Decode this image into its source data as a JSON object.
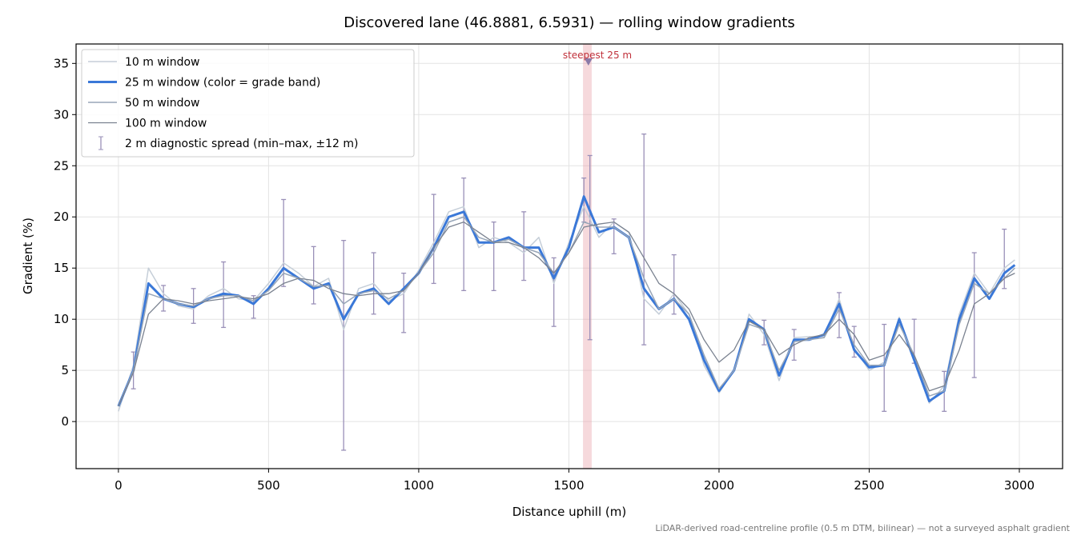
{
  "chart_data": {
    "type": "line",
    "title": "Discovered lane (46.8881, 6.5931) — rolling window gradients",
    "xlabel": "Distance uphill (m)",
    "ylabel": "Gradient (%)",
    "footnote": "LiDAR-derived road-centreline profile (0.5 m DTM, bilinear) — not a surveyed asphalt gradient",
    "xlim": [
      -141,
      3144
    ],
    "ylim": [
      -4.6,
      36.9
    ],
    "xticks": [
      0,
      500,
      1000,
      1500,
      2000,
      2500,
      3000
    ],
    "yticks": [
      0,
      5,
      10,
      15,
      20,
      25,
      30,
      35
    ],
    "grid": true,
    "legend": "upper left",
    "x": [
      0,
      50,
      100,
      150,
      200,
      250,
      300,
      350,
      400,
      450,
      500,
      550,
      600,
      650,
      700,
      750,
      800,
      850,
      900,
      950,
      1000,
      1050,
      1100,
      1150,
      1200,
      1250,
      1300,
      1350,
      1400,
      1450,
      1500,
      1550,
      1600,
      1650,
      1700,
      1750,
      1800,
      1850,
      1900,
      1950,
      2000,
      2050,
      2100,
      2150,
      2200,
      2250,
      2300,
      2350,
      2400,
      2450,
      2500,
      2550,
      2600,
      2650,
      2700,
      2750,
      2800,
      2850,
      2900,
      2950,
      2985
    ],
    "series": [
      {
        "name": "10 m window",
        "color": "#c5ced8",
        "width": 1.5,
        "values": [
          1,
          5.5,
          15,
          12.5,
          11.3,
          11,
          12.3,
          13,
          12,
          11.8,
          13.5,
          15.5,
          14.5,
          13.2,
          14,
          9,
          13,
          13.5,
          11.8,
          12.5,
          14.8,
          17.5,
          20.5,
          21,
          17,
          18,
          17.5,
          16.5,
          18,
          13.5,
          17.5,
          21,
          18,
          19.5,
          18.5,
          12,
          10.5,
          12.5,
          10.5,
          5.5,
          2.8,
          5,
          10.5,
          8.5,
          4,
          8.2,
          8.3,
          8.3,
          12,
          7.2,
          5,
          5.8,
          10.2,
          6,
          1.8,
          3.5,
          10.5,
          14.5,
          12.5,
          15,
          15.8
        ]
      },
      {
        "name": "25 m window (color = grade band)",
        "color": "#3a78d8",
        "width": 3,
        "values": [
          1.5,
          5,
          13.5,
          12,
          11.5,
          11.2,
          12,
          12.5,
          12.3,
          11.5,
          13,
          15,
          14,
          13,
          13.5,
          10,
          12.5,
          13,
          11.5,
          13,
          14.5,
          17,
          20,
          20.5,
          17.5,
          17.5,
          18,
          17,
          17,
          14,
          17,
          22,
          18.5,
          19,
          18,
          13,
          11,
          12,
          10,
          6,
          3,
          5,
          10,
          9,
          4.5,
          8,
          8,
          8.5,
          11.5,
          7,
          5.3,
          5.5,
          10,
          6,
          2,
          3,
          10,
          14,
          12,
          14.5,
          15.3
        ]
      },
      {
        "name": "50 m window",
        "color": "#98a6b8",
        "width": 1.5,
        "values": [
          1.5,
          5,
          12.5,
          12,
          11.5,
          11.3,
          12,
          12.3,
          12.3,
          11.8,
          12.8,
          14.5,
          14,
          13.2,
          13.3,
          11.5,
          12.5,
          12.8,
          12,
          12.8,
          14.5,
          16.5,
          19.5,
          20,
          18,
          17.5,
          17.8,
          17,
          16.5,
          14.5,
          16.5,
          19.5,
          19,
          19,
          18,
          14,
          11,
          12,
          10.5,
          6.5,
          3.2,
          5,
          9.5,
          9,
          5,
          7.8,
          8,
          8.2,
          11,
          7.5,
          5.5,
          5.5,
          9.5,
          6.5,
          2.5,
          3,
          9.5,
          13.5,
          12.5,
          14,
          15
        ]
      },
      {
        "name": "100 m window",
        "color": "#7a8290",
        "width": 1.3,
        "values": [
          1.5,
          4.8,
          10.5,
          12,
          11.8,
          11.5,
          11.8,
          12,
          12.2,
          12,
          12.5,
          13.5,
          14,
          13.8,
          13,
          12.5,
          12.3,
          12.5,
          12.5,
          12.8,
          14.5,
          17,
          19,
          19.5,
          18.5,
          17.5,
          17.5,
          17,
          16,
          14.5,
          16.5,
          19,
          19.3,
          19.5,
          18.5,
          16,
          13.5,
          12.5,
          11,
          8,
          5.8,
          7,
          9.8,
          9,
          6.5,
          7.5,
          8.2,
          8.5,
          10,
          8.5,
          6,
          6.5,
          8.5,
          6.5,
          3,
          3.5,
          7,
          11.5,
          12.5,
          14,
          14.5
        ]
      }
    ],
    "spread": {
      "name": "2 m diagnostic spread (min–max, ±12 m)",
      "color": "#9a90b8",
      "x": [
        50,
        150,
        250,
        350,
        450,
        550,
        650,
        750,
        850,
        950,
        1050,
        1150,
        1250,
        1350,
        1450,
        1550,
        1570,
        1650,
        1750,
        1850,
        2150,
        2250,
        2400,
        2450,
        2550,
        2650,
        2750,
        2850,
        2950
      ],
      "min": [
        3.2,
        10.8,
        9.6,
        9.2,
        10.1,
        13.2,
        11.5,
        -2.8,
        10.5,
        8.7,
        13.5,
        12.8,
        12.8,
        13.8,
        9.3,
        19.5,
        8,
        16.4,
        7.5,
        10.5,
        7.5,
        6,
        8.2,
        6.3,
        1,
        5.7,
        1,
        4.3,
        13
      ],
      "max": [
        6.8,
        13.3,
        13,
        15.6,
        12.3,
        21.7,
        17.1,
        17.7,
        16.5,
        14.5,
        22.2,
        23.8,
        19.5,
        20.5,
        16,
        23.8,
        26,
        19.8,
        28.1,
        16.3,
        9.9,
        9,
        12.6,
        9.3,
        9.5,
        10,
        4.9,
        16.5,
        18.8
      ]
    },
    "highlight": {
      "x": [
        1547,
        1576
      ],
      "label": "steepest 25 m",
      "color": "#e8a0a8",
      "marker": [
        1565,
        35.1
      ]
    }
  }
}
